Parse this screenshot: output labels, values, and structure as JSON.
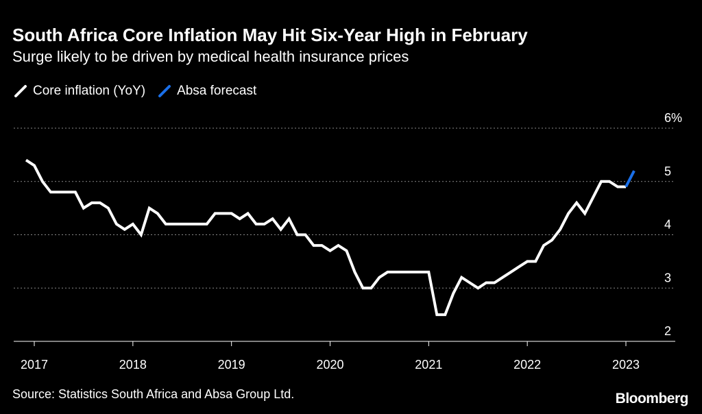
{
  "header": {
    "title": "South Africa Core Inflation May Hit Six-Year High in February",
    "subtitle": "Surge likely to be driven by medical health insurance prices"
  },
  "footer": {
    "source": "Source: Statistics South Africa and Absa Group Ltd.",
    "brand": "Bloomberg"
  },
  "colors": {
    "background": "#000000",
    "core_line": "#ffffff",
    "forecast_line": "#1a6fe8",
    "grid": "#8a8a8a",
    "text": "#ffffff"
  },
  "chart_data": {
    "type": "line",
    "title": "South Africa Core Inflation May Hit Six-Year High in February",
    "subtitle": "Surge likely to be driven by medical health insurance prices",
    "xlabel": "",
    "ylabel": "",
    "ylim": [
      2,
      6
    ],
    "y_ticks": [
      {
        "value": 6,
        "label": "6%"
      },
      {
        "value": 5,
        "label": "5"
      },
      {
        "value": 4,
        "label": "4"
      },
      {
        "value": 3,
        "label": "3"
      },
      {
        "value": 2,
        "label": "2"
      }
    ],
    "x_ticks": [
      {
        "value": "2017-01",
        "label": "2017"
      },
      {
        "value": "2018-01",
        "label": "2018"
      },
      {
        "value": "2019-01",
        "label": "2019"
      },
      {
        "value": "2020-01",
        "label": "2020"
      },
      {
        "value": "2021-01",
        "label": "2021"
      },
      {
        "value": "2022-01",
        "label": "2022"
      },
      {
        "value": "2023-01",
        "label": "2023"
      }
    ],
    "x_range": [
      "2016-12",
      "2023-06"
    ],
    "grid": true,
    "legend_position": "top-left",
    "series": [
      {
        "name": "Core inflation (YoY)",
        "color": "#ffffff",
        "points": [
          [
            "2016-12",
            5.4
          ],
          [
            "2017-01",
            5.3
          ],
          [
            "2017-02",
            5.0
          ],
          [
            "2017-03",
            4.8
          ],
          [
            "2017-04",
            4.8
          ],
          [
            "2017-05",
            4.8
          ],
          [
            "2017-06",
            4.8
          ],
          [
            "2017-07",
            4.5
          ],
          [
            "2017-08",
            4.6
          ],
          [
            "2017-09",
            4.6
          ],
          [
            "2017-10",
            4.5
          ],
          [
            "2017-11",
            4.2
          ],
          [
            "2017-12",
            4.1
          ],
          [
            "2018-01",
            4.2
          ],
          [
            "2018-02",
            4.0
          ],
          [
            "2018-03",
            4.5
          ],
          [
            "2018-04",
            4.4
          ],
          [
            "2018-05",
            4.2
          ],
          [
            "2018-06",
            4.2
          ],
          [
            "2018-07",
            4.2
          ],
          [
            "2018-08",
            4.2
          ],
          [
            "2018-09",
            4.2
          ],
          [
            "2018-10",
            4.2
          ],
          [
            "2018-11",
            4.4
          ],
          [
            "2018-12",
            4.4
          ],
          [
            "2019-01",
            4.4
          ],
          [
            "2019-02",
            4.3
          ],
          [
            "2019-03",
            4.4
          ],
          [
            "2019-04",
            4.2
          ],
          [
            "2019-05",
            4.2
          ],
          [
            "2019-06",
            4.3
          ],
          [
            "2019-07",
            4.1
          ],
          [
            "2019-08",
            4.3
          ],
          [
            "2019-09",
            4.0
          ],
          [
            "2019-10",
            4.0
          ],
          [
            "2019-11",
            3.8
          ],
          [
            "2019-12",
            3.8
          ],
          [
            "2020-01",
            3.7
          ],
          [
            "2020-02",
            3.8
          ],
          [
            "2020-03",
            3.7
          ],
          [
            "2020-04",
            3.3
          ],
          [
            "2020-05",
            3.0
          ],
          [
            "2020-06",
            3.0
          ],
          [
            "2020-07",
            3.2
          ],
          [
            "2020-08",
            3.3
          ],
          [
            "2020-09",
            3.3
          ],
          [
            "2020-10",
            3.3
          ],
          [
            "2020-11",
            3.3
          ],
          [
            "2020-12",
            3.3
          ],
          [
            "2021-01",
            3.3
          ],
          [
            "2021-02",
            2.5
          ],
          [
            "2021-03",
            2.5
          ],
          [
            "2021-04",
            2.9
          ],
          [
            "2021-05",
            3.2
          ],
          [
            "2021-06",
            3.1
          ],
          [
            "2021-07",
            3.0
          ],
          [
            "2021-08",
            3.1
          ],
          [
            "2021-09",
            3.1
          ],
          [
            "2021-10",
            3.2
          ],
          [
            "2021-11",
            3.3
          ],
          [
            "2021-12",
            3.4
          ],
          [
            "2022-01",
            3.5
          ],
          [
            "2022-02",
            3.5
          ],
          [
            "2022-03",
            3.8
          ],
          [
            "2022-04",
            3.9
          ],
          [
            "2022-05",
            4.1
          ],
          [
            "2022-06",
            4.4
          ],
          [
            "2022-07",
            4.6
          ],
          [
            "2022-08",
            4.4
          ],
          [
            "2022-09",
            4.7
          ],
          [
            "2022-10",
            5.0
          ],
          [
            "2022-11",
            5.0
          ],
          [
            "2022-12",
            4.9
          ],
          [
            "2023-01",
            4.9
          ]
        ]
      },
      {
        "name": "Absa forecast",
        "color": "#1a6fe8",
        "points": [
          [
            "2023-01",
            4.9
          ],
          [
            "2023-02",
            5.2
          ]
        ]
      }
    ]
  }
}
